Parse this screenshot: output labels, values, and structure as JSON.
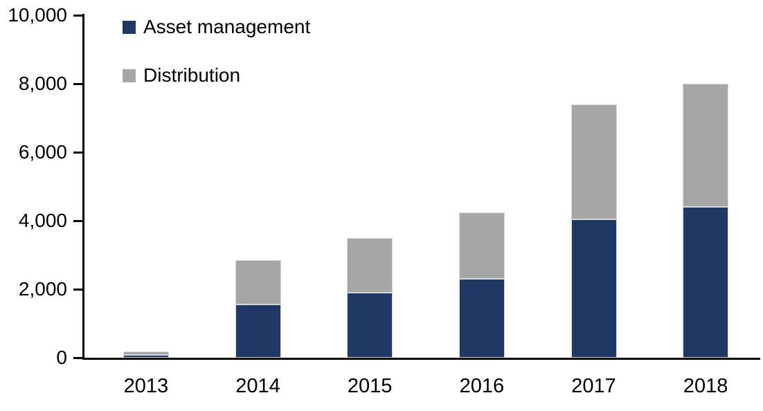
{
  "chart_data": {
    "type": "bar",
    "stacked": true,
    "categories": [
      "2013",
      "2014",
      "2015",
      "2016",
      "2017",
      "2018"
    ],
    "series": [
      {
        "name": "Asset management",
        "color": "#1F3864",
        "values": [
          80,
          1550,
          1900,
          2300,
          4050,
          4400
        ]
      },
      {
        "name": "Distribution",
        "color": "#A6A6A6",
        "values": [
          100,
          1300,
          1600,
          1950,
          3350,
          3600
        ]
      }
    ],
    "totals": [
      180,
      2850,
      3500,
      4250,
      7400,
      8000
    ],
    "title": "",
    "xlabel": "",
    "ylabel": "",
    "ylim": [
      0,
      10000
    ],
    "ytick_interval": 2000,
    "ytick_labels": [
      "0",
      "2,000",
      "4,000",
      "6,000",
      "8,000",
      "10,000"
    ],
    "grid": false,
    "legend_position": "top-left-inside",
    "axis_color": "#000000",
    "background_color": "#ffffff"
  }
}
